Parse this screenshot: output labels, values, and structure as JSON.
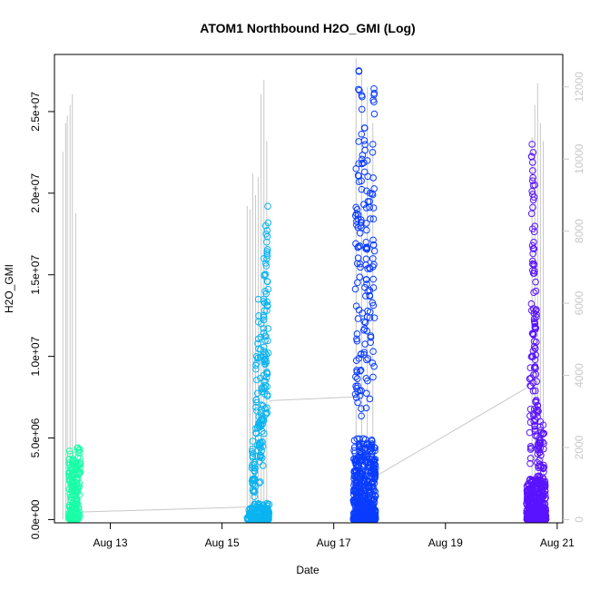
{
  "chart_data": {
    "type": "scatter",
    "title": "ATOM1 Northbound H2O_GMI (Log)",
    "xlabel": "Date",
    "ylabel": "H2O_GMI",
    "x_ticks": [
      "Aug 13",
      "Aug 15",
      "Aug 17",
      "Aug 19",
      "Aug 21"
    ],
    "x_tick_values": [
      13,
      15,
      17,
      19,
      21
    ],
    "xlim": [
      12.0,
      21.1
    ],
    "y_ticks": [
      "0.0e+00",
      "5.0e+06",
      "1.0e+07",
      "1.5e+07",
      "2.0e+07",
      "2.5e+07"
    ],
    "y_tick_values": [
      0,
      5000000,
      10000000,
      15000000,
      20000000,
      25000000
    ],
    "ylim": [
      -200000,
      28500000
    ],
    "y2_ticks": [
      "0",
      "2000",
      "4000",
      "6000",
      "8000",
      "10000",
      "12000"
    ],
    "y2_tick_values": [
      0,
      2000,
      4000,
      6000,
      8000,
      10000,
      12000
    ],
    "y2lim": [
      -90,
      12900
    ],
    "grid": false,
    "series": [
      {
        "color": "#1affa8",
        "x_range": [
          12.25,
          12.45
        ],
        "y_max": 4500000,
        "dense_max": 1000000,
        "n": 90,
        "upper": [
          [
            12.27,
            4200000
          ],
          [
            12.33,
            3700000
          ],
          [
            12.38,
            3500000
          ],
          [
            12.42,
            4400000
          ],
          [
            12.45,
            4300000
          ],
          [
            12.3,
            3100000
          ],
          [
            12.4,
            2400000
          ]
        ]
      },
      {
        "color": "#0ab4f0",
        "x_range": [
          15.45,
          15.85
        ],
        "y_max": 19200000,
        "dense_max": 1000000,
        "n": 160,
        "upper": [
          [
            15.55,
            4800000
          ],
          [
            15.62,
            10000000
          ],
          [
            15.65,
            13500000
          ],
          [
            15.7,
            12000000
          ],
          [
            15.75,
            16000000
          ],
          [
            15.78,
            18000000
          ],
          [
            15.82,
            19200000
          ],
          [
            15.8,
            17000000
          ],
          [
            15.72,
            8000000
          ],
          [
            15.68,
            6000000
          ],
          [
            15.58,
            3500000
          ],
          [
            15.76,
            15000000
          ]
        ]
      },
      {
        "color": "#0a3cff",
        "x_range": [
          17.35,
          17.75
        ],
        "y_max": 27500000,
        "dense_max": 5000000,
        "n": 520,
        "upper": [
          [
            17.45,
            27500000
          ],
          [
            17.5,
            26000000
          ],
          [
            17.72,
            26400000
          ],
          [
            17.55,
            24000000
          ],
          [
            17.6,
            22000000
          ],
          [
            17.65,
            20000000
          ],
          [
            17.4,
            21500000
          ],
          [
            17.42,
            19000000
          ],
          [
            17.7,
            23000000
          ],
          [
            17.48,
            18000000
          ],
          [
            17.58,
            17000000
          ]
        ]
      },
      {
        "color": "#5a14ff",
        "x_range": [
          20.45,
          20.8
        ],
        "y_max": 23000000,
        "dense_max": 2500000,
        "n": 360,
        "upper": [
          [
            20.55,
            23000000
          ],
          [
            20.57,
            22500000
          ],
          [
            20.6,
            20500000
          ],
          [
            20.58,
            17000000
          ],
          [
            20.62,
            14000000
          ],
          [
            20.52,
            9300000
          ],
          [
            20.65,
            7000000
          ],
          [
            20.7,
            6000000
          ],
          [
            20.75,
            5800000
          ],
          [
            20.68,
            5000000
          ],
          [
            20.6,
            12000000
          ]
        ]
      }
    ],
    "background_line": {
      "color": "#c8c8c8",
      "axis": "right",
      "spikes": [
        [
          12.15,
          10200
        ],
        [
          12.2,
          11000
        ],
        [
          12.23,
          11200
        ],
        [
          12.28,
          11500
        ],
        [
          12.32,
          11800
        ],
        [
          12.38,
          8500
        ],
        [
          15.45,
          8700
        ],
        [
          15.5,
          8600
        ],
        [
          15.55,
          9600
        ],
        [
          15.6,
          9000
        ],
        [
          15.65,
          9500
        ],
        [
          15.7,
          11800
        ],
        [
          15.75,
          12200
        ],
        [
          15.8,
          10500
        ],
        [
          17.4,
          12800
        ],
        [
          17.5,
          12500
        ],
        [
          17.6,
          12000
        ],
        [
          17.7,
          11000
        ],
        [
          20.55,
          10600
        ],
        [
          20.6,
          11500
        ],
        [
          20.65,
          12100
        ],
        [
          20.7,
          11000
        ],
        [
          20.75,
          10500
        ]
      ],
      "connectors": [
        [
          [
            12.25,
            200
          ],
          [
            15.5,
            350
          ]
        ],
        [
          [
            15.85,
            3300
          ],
          [
            17.35,
            3400
          ]
        ],
        [
          [
            17.75,
            1200
          ],
          [
            20.45,
            3650
          ]
        ]
      ]
    }
  }
}
